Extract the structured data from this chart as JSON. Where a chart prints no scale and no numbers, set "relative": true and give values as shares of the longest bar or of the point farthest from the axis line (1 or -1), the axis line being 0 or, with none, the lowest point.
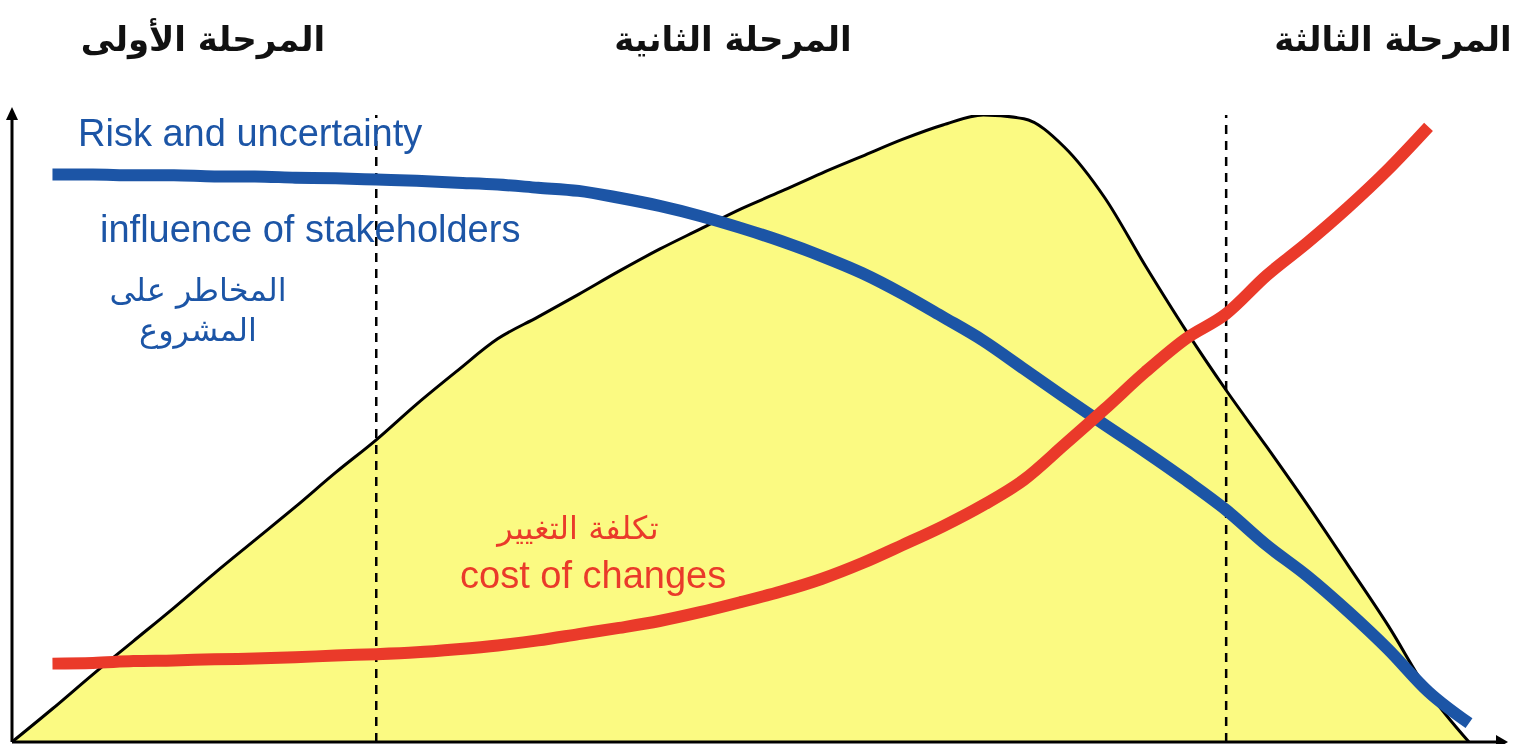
{
  "chart_data": {
    "type": "line",
    "relative": true,
    "categories": [
      null,
      null,
      null,
      null,
      null,
      null,
      null,
      null,
      null,
      null,
      null,
      null,
      null,
      null,
      null,
      null,
      null,
      null,
      null,
      null,
      null,
      null,
      null,
      null,
      null,
      null,
      null,
      null,
      null,
      null,
      null,
      null,
      null,
      null,
      null,
      null,
      null
    ],
    "series": [
      {
        "type": "area",
        "color": "#fbfa82",
        "values": [
          0,
          0.053,
          0.108,
          0.161,
          0.214,
          0.269,
          0.322,
          0.375,
          0.43,
          0.482,
          0.539,
          0.592,
          0.643,
          0.678,
          0.714,
          0.751,
          0.786,
          0.818,
          0.85,
          0.878,
          0.907,
          0.934,
          0.961,
          0.984,
          1.0,
          0.994,
          0.949,
          0.868,
          0.76,
          0.657,
          0.561,
          0.471,
          0.379,
          0.283,
          0.186,
          0.08,
          0
        ]
      },
      {
        "color": "#1c55a6",
        "values": [
          null,
          0.905,
          0.905,
          0.904,
          0.904,
          0.902,
          0.902,
          0.9,
          0.899,
          0.897,
          0.895,
          0.892,
          0.889,
          0.884,
          0.879,
          0.868,
          0.855,
          0.839,
          0.82,
          0.799,
          0.775,
          0.748,
          0.715,
          0.678,
          0.64,
          0.595,
          0.55,
          0.506,
          0.463,
          0.418,
          0.37,
          0.314,
          0.265,
          0.209,
          0.148,
          0.08,
          0.03
        ]
      },
      {
        "color": "#ea3a2a",
        "values": [
          null,
          0.125,
          0.126,
          0.129,
          0.13,
          0.132,
          0.133,
          0.135,
          0.138,
          0.14,
          0.143,
          0.148,
          0.154,
          0.162,
          0.172,
          0.182,
          0.193,
          0.207,
          0.223,
          0.24,
          0.26,
          0.285,
          0.314,
          0.344,
          0.378,
          0.418,
          0.474,
          0.531,
          0.59,
          0.643,
          0.683,
          0.744,
          0.796,
          0.852,
          0.913,
          0.981,
          null
        ]
      }
    ],
    "annotations": [
      "المرحلة الأولى",
      "المرحلة الثانية",
      "المرحلة الثالثة",
      "Risk and uncertainty",
      "influence of stakeholders",
      "المخاطر على المشروع",
      "تكلفة التغيير",
      "cost of changes"
    ]
  }
}
